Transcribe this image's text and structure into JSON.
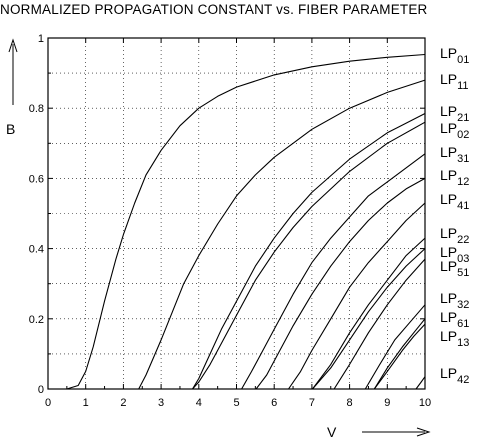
{
  "chart_data": {
    "type": "line",
    "title": "NORMALIZED PROPAGATION CONSTANT vs. FIBER PARAMETER",
    "xlabel": "V",
    "ylabel": "B",
    "xlim": [
      0,
      10
    ],
    "ylim": [
      0,
      1
    ],
    "x_ticks": [
      "0",
      "1",
      "2",
      "3",
      "4",
      "5",
      "6",
      "7",
      "8",
      "9",
      "10"
    ],
    "y_ticks": [
      "0",
      "0.2",
      "0.4",
      "0.6",
      "0.8",
      "1"
    ],
    "grid": true,
    "legend_position": "right",
    "series": [
      {
        "name": "LP01",
        "base": "LP",
        "sub": "01",
        "cutoff": 0.0,
        "x": [
          0,
          0.5,
          0.8,
          1.0,
          1.2,
          1.5,
          1.8,
          2.0,
          2.3,
          2.6,
          3.0,
          3.5,
          4.0,
          4.5,
          5.0,
          6.0,
          7.0,
          8.0,
          9.0,
          10.0
        ],
        "y": [
          0,
          0,
          0.01,
          0.05,
          0.12,
          0.25,
          0.37,
          0.44,
          0.53,
          0.61,
          0.68,
          0.75,
          0.8,
          0.834,
          0.86,
          0.895,
          0.918,
          0.934,
          0.945,
          0.953
        ]
      },
      {
        "name": "LP11",
        "base": "LP",
        "sub": "11",
        "cutoff": 2.405,
        "x": [
          2.405,
          2.6,
          2.8,
          3.0,
          3.3,
          3.6,
          4.0,
          4.5,
          5.0,
          5.5,
          6.0,
          7.0,
          8.0,
          9.0,
          10.0
        ],
        "y": [
          0,
          0.04,
          0.09,
          0.14,
          0.22,
          0.3,
          0.38,
          0.47,
          0.55,
          0.61,
          0.66,
          0.74,
          0.8,
          0.845,
          0.88
        ]
      },
      {
        "name": "LP21",
        "base": "LP",
        "sub": "21",
        "cutoff": 3.832,
        "x": [
          3.832,
          4.0,
          4.3,
          4.6,
          5.0,
          5.5,
          6.0,
          6.5,
          7.0,
          8.0,
          9.0,
          10.0
        ],
        "y": [
          0,
          0.03,
          0.1,
          0.17,
          0.25,
          0.35,
          0.43,
          0.5,
          0.56,
          0.655,
          0.73,
          0.785
        ]
      },
      {
        "name": "LP02",
        "base": "LP",
        "sub": "02",
        "cutoff": 3.832,
        "x": [
          3.832,
          4.0,
          4.3,
          4.6,
          5.0,
          5.5,
          6.0,
          6.5,
          7.0,
          8.0,
          9.0,
          10.0
        ],
        "y": [
          0,
          0.02,
          0.07,
          0.13,
          0.21,
          0.31,
          0.39,
          0.46,
          0.52,
          0.62,
          0.7,
          0.76
        ]
      },
      {
        "name": "LP31",
        "base": "LP",
        "sub": "31",
        "cutoff": 5.136,
        "x": [
          5.136,
          5.4,
          5.7,
          6.0,
          6.5,
          7.0,
          7.5,
          8.0,
          8.5,
          9.0,
          10.0
        ],
        "y": [
          0,
          0.05,
          0.11,
          0.17,
          0.27,
          0.36,
          0.43,
          0.49,
          0.55,
          0.59,
          0.67
        ]
      },
      {
        "name": "LP12",
        "base": "LP",
        "sub": "12",
        "cutoff": 5.52,
        "x": [
          5.52,
          5.8,
          6.1,
          6.5,
          7.0,
          7.5,
          8.0,
          8.5,
          9.0,
          9.5,
          10.0
        ],
        "y": [
          0,
          0.04,
          0.1,
          0.18,
          0.27,
          0.35,
          0.42,
          0.48,
          0.53,
          0.57,
          0.6
        ]
      },
      {
        "name": "LP41",
        "base": "LP",
        "sub": "41",
        "cutoff": 6.38,
        "x": [
          6.38,
          6.7,
          7.0,
          7.5,
          8.0,
          8.5,
          9.0,
          9.5,
          10.0
        ],
        "y": [
          0,
          0.05,
          0.11,
          0.2,
          0.29,
          0.36,
          0.42,
          0.48,
          0.53
        ]
      },
      {
        "name": "LP22",
        "base": "LP",
        "sub": "22",
        "cutoff": 7.016,
        "x": [
          7.016,
          7.5,
          8.0,
          8.5,
          9.0,
          9.5,
          10.0
        ],
        "y": [
          0,
          0.07,
          0.16,
          0.24,
          0.31,
          0.38,
          0.43
        ]
      },
      {
        "name": "LP03",
        "base": "LP",
        "sub": "03",
        "cutoff": 7.016,
        "x": [
          7.016,
          7.5,
          8.0,
          8.5,
          9.0,
          9.5,
          10.0
        ],
        "y": [
          0,
          0.06,
          0.14,
          0.22,
          0.29,
          0.35,
          0.4
        ]
      },
      {
        "name": "LP51",
        "base": "LP",
        "sub": "51",
        "cutoff": 7.588,
        "x": [
          7.588,
          8.0,
          8.5,
          9.0,
          9.5,
          10.0
        ],
        "y": [
          0,
          0.07,
          0.16,
          0.24,
          0.31,
          0.37
        ]
      },
      {
        "name": "LP32",
        "base": "LP",
        "sub": "32",
        "cutoff": 8.417,
        "x": [
          8.417,
          8.8,
          9.2,
          9.6,
          10.0
        ],
        "y": [
          0,
          0.07,
          0.14,
          0.19,
          0.24
        ]
      },
      {
        "name": "LP61",
        "base": "LP",
        "sub": "61",
        "cutoff": 8.654,
        "x": [
          8.654,
          9.0,
          9.4,
          9.7,
          10.0
        ],
        "y": [
          0,
          0.06,
          0.12,
          0.16,
          0.2
        ]
      },
      {
        "name": "LP13",
        "base": "LP",
        "sub": "13",
        "cutoff": 8.654,
        "x": [
          8.654,
          9.0,
          9.4,
          9.7,
          10.0
        ],
        "y": [
          0,
          0.05,
          0.11,
          0.15,
          0.185
        ]
      },
      {
        "name": "LP42",
        "base": "LP",
        "sub": "42",
        "cutoff": 9.761,
        "x": [
          9.761,
          9.9,
          10.0
        ],
        "y": [
          0,
          0.02,
          0.035
        ]
      }
    ]
  }
}
